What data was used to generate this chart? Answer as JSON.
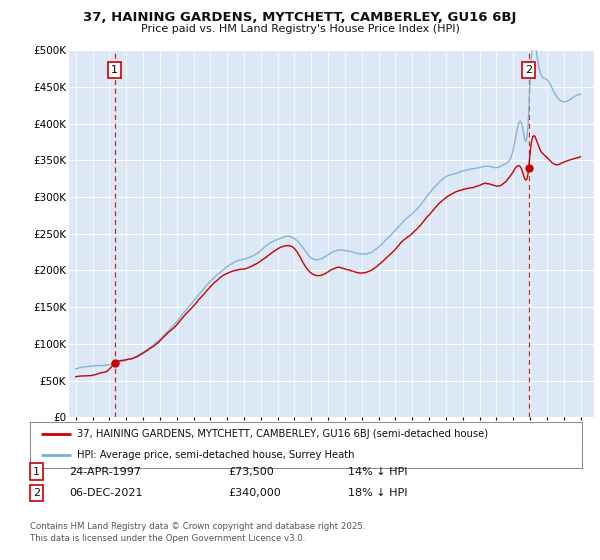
{
  "title": "37, HAINING GARDENS, MYTCHETT, CAMBERLEY, GU16 6BJ",
  "subtitle": "Price paid vs. HM Land Registry's House Price Index (HPI)",
  "legend_line1": "37, HAINING GARDENS, MYTCHETT, CAMBERLEY, GU16 6BJ (semi-detached house)",
  "legend_line2": "HPI: Average price, semi-detached house, Surrey Heath",
  "footnote": "Contains HM Land Registry data © Crown copyright and database right 2025.\nThis data is licensed under the Open Government Licence v3.0.",
  "sale1_label": "1",
  "sale1_date": "24-APR-1997",
  "sale1_price": "£73,500",
  "sale1_hpi": "14% ↓ HPI",
  "sale2_label": "2",
  "sale2_date": "06-DEC-2021",
  "sale2_price": "£340,000",
  "sale2_hpi": "18% ↓ HPI",
  "hpi_color": "#7aafd4",
  "sale_color": "#cc0000",
  "bg_color": "#dce8f5",
  "grid_color": "#ffffff",
  "ylim": [
    0,
    500000
  ],
  "yticks": [
    0,
    50000,
    100000,
    150000,
    200000,
    250000,
    300000,
    350000,
    400000,
    450000,
    500000
  ],
  "sale1_x": 1997.31,
  "sale1_y": 73500,
  "sale2_x": 2021.92,
  "sale2_y": 340000,
  "xlim_left": 1994.6,
  "xlim_right": 2025.8
}
